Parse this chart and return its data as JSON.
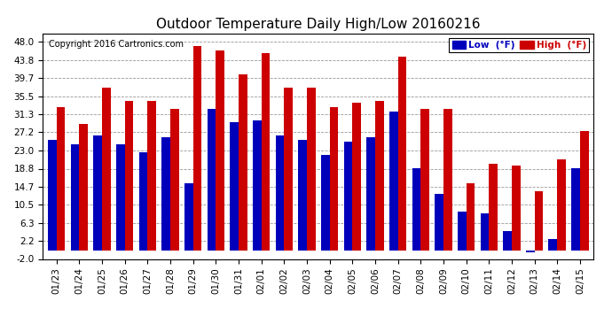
{
  "title": "Outdoor Temperature Daily High/Low 20160216",
  "copyright": "Copyright 2016 Cartronics.com",
  "legend_low": "Low  (°F)",
  "legend_high": "High  (°F)",
  "dates": [
    "01/23",
    "01/24",
    "01/25",
    "01/26",
    "01/27",
    "01/28",
    "01/29",
    "01/30",
    "01/31",
    "02/01",
    "02/02",
    "02/03",
    "02/04",
    "02/05",
    "02/06",
    "02/07",
    "02/08",
    "02/09",
    "02/10",
    "02/11",
    "02/12",
    "02/13",
    "02/14",
    "02/15"
  ],
  "high_vals": [
    33.0,
    29.0,
    37.5,
    34.5,
    34.5,
    32.5,
    47.0,
    46.0,
    40.5,
    45.5,
    37.5,
    37.5,
    33.0,
    34.0,
    34.5,
    44.5,
    32.5,
    32.5,
    15.5,
    20.0,
    19.5,
    13.5,
    21.0,
    27.5
  ],
  "low_vals": [
    25.5,
    24.5,
    26.5,
    24.5,
    22.5,
    26.0,
    15.5,
    32.5,
    29.5,
    30.0,
    26.5,
    25.5,
    22.0,
    25.0,
    26.0,
    32.0,
    19.0,
    13.0,
    9.0,
    8.5,
    4.5,
    -0.5,
    2.5,
    19.0
  ],
  "ylim_min": -2.0,
  "ylim_max": 50.0,
  "yticks": [
    -2.0,
    2.2,
    6.3,
    10.5,
    14.7,
    18.8,
    23.0,
    27.2,
    31.3,
    35.5,
    39.7,
    43.8,
    48.0
  ],
  "ytick_labels": [
    "-2.0",
    "2.2",
    "6.3",
    "10.5",
    "14.7",
    "18.8",
    "23.0",
    "27.2",
    "31.3",
    "35.5",
    "39.7",
    "43.8",
    "48.0"
  ],
  "background_color": "#ffffff",
  "plot_bg_color": "#ffffff",
  "low_color": "#0000bb",
  "high_color": "#cc0000",
  "title_fontsize": 11,
  "tick_fontsize": 7.5,
  "bar_width": 0.38,
  "grid_color": "#999999",
  "copyright_fontsize": 7
}
